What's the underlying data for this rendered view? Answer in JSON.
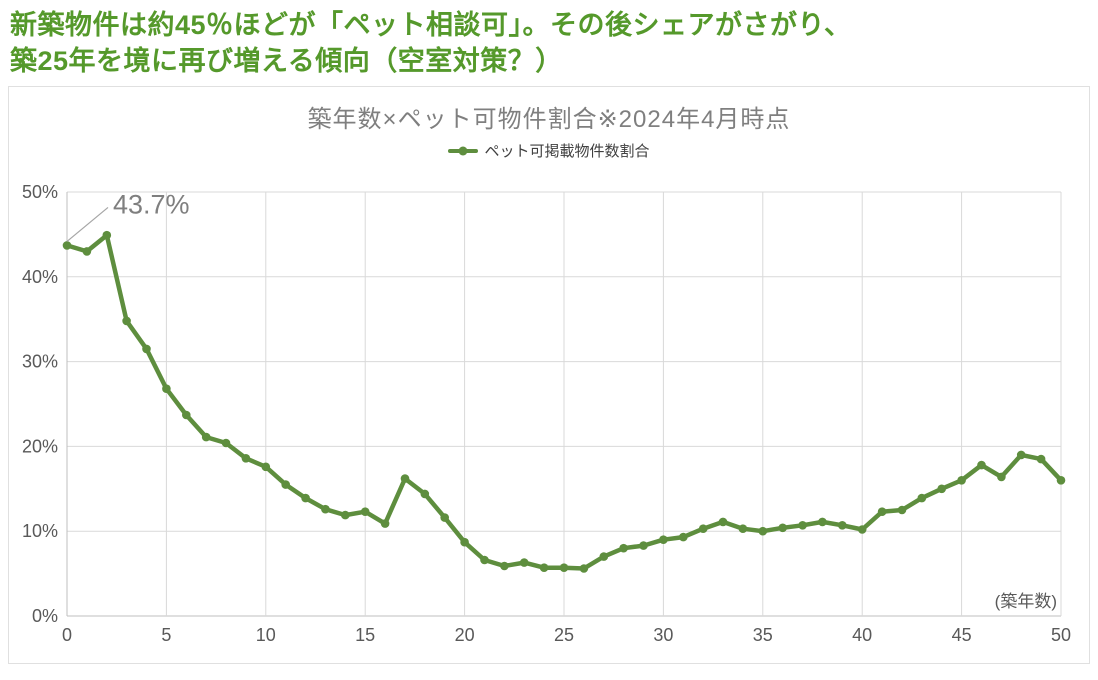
{
  "header": {
    "line1": "新築物件は約45％ほどが「ペット相談可」。その後シェアがさがり、",
    "line2": "築25年を境に再び増える傾向（空室対策？）"
  },
  "colors": {
    "headline_green": "#55992b",
    "line_green": "#5e8e3e",
    "gridline": "#d9d9d9",
    "axis_line": "#bfbfbf",
    "tick_label": "#595959",
    "chart_title_gray": "#7f7f7f",
    "annotation_gray": "#7f7f7f",
    "leader_line": "#a6a6a6"
  },
  "chart_data": {
    "type": "line",
    "title": "築年数×ペット可物件割合※2024年4月時点",
    "legend": "ペット可掲載物件数割合",
    "xlabel": "(築年数)",
    "ylabel": "",
    "xlim": [
      0,
      50
    ],
    "ylim": [
      0,
      50
    ],
    "x_tick_step": 5,
    "y_tick_step": 10,
    "y_tick_suffix": "%",
    "grid": true,
    "legend_position": "top-center",
    "annotation": {
      "text": "43.7%",
      "x": 0,
      "y": 43.7
    },
    "x": [
      0,
      1,
      2,
      3,
      4,
      5,
      6,
      7,
      8,
      9,
      10,
      11,
      12,
      13,
      14,
      15,
      16,
      17,
      18,
      19,
      20,
      21,
      22,
      23,
      24,
      25,
      26,
      27,
      28,
      29,
      30,
      31,
      32,
      33,
      34,
      35,
      36,
      37,
      38,
      39,
      40,
      41,
      42,
      43,
      44,
      45,
      46,
      47,
      48,
      49,
      50
    ],
    "values": [
      43.7,
      43.0,
      44.9,
      34.8,
      31.5,
      26.8,
      23.7,
      21.1,
      20.4,
      18.6,
      17.6,
      15.5,
      13.9,
      12.6,
      11.9,
      12.3,
      10.9,
      16.2,
      14.4,
      11.6,
      8.7,
      6.6,
      5.9,
      6.3,
      5.7,
      5.7,
      5.6,
      7.0,
      8.0,
      8.3,
      9.0,
      9.3,
      10.3,
      11.1,
      10.3,
      10.0,
      10.4,
      10.7,
      11.1,
      10.7,
      10.2,
      12.3,
      12.5,
      13.9,
      15.0,
      16.0,
      17.8,
      16.4,
      19.0,
      18.5,
      16.0
    ]
  }
}
